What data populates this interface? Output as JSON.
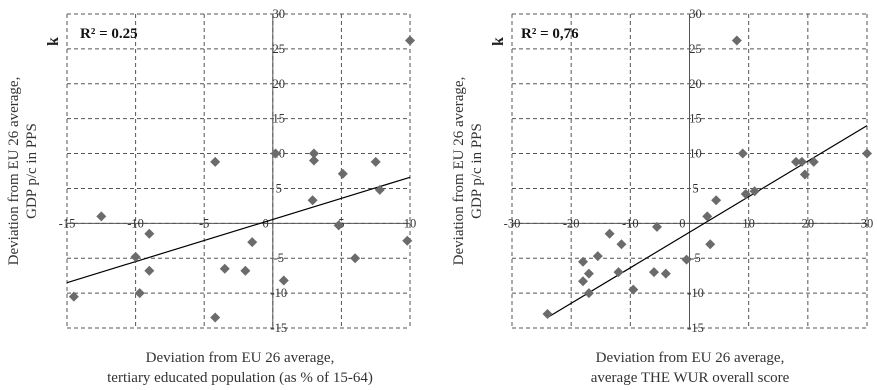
{
  "chart_data": [
    {
      "type": "scatter",
      "title": "",
      "annotation": "R² = 0.25",
      "corner_label": "k",
      "xlabel": [
        "Deviation from EU 26 average,",
        "tertiary educated population (as % of 15-64)"
      ],
      "ylabel": [
        "Deviation from EU 26 average,",
        "GDP p/c  in PPS"
      ],
      "xlim": [
        -15,
        10
      ],
      "ylim": [
        -15,
        30
      ],
      "xticks": [
        -15,
        -10,
        -5,
        0,
        5,
        10
      ],
      "yticks": [
        -15,
        -10,
        -5,
        0,
        5,
        10,
        15,
        20,
        25,
        30
      ],
      "grid": true,
      "marker_color": "#6b6b6b",
      "line_color": "#000000",
      "trendline": {
        "x": [
          -15,
          10
        ],
        "y": [
          -8.5,
          6.6
        ]
      },
      "points": [
        {
          "x": -12.5,
          "y": 1.0
        },
        {
          "x": -14.5,
          "y": -10.5
        },
        {
          "x": -10.0,
          "y": -4.8
        },
        {
          "x": -9.7,
          "y": -10.0
        },
        {
          "x": -9.0,
          "y": -1.5
        },
        {
          "x": -9.0,
          "y": -6.8
        },
        {
          "x": -4.2,
          "y": 8.8
        },
        {
          "x": -4.2,
          "y": -13.5
        },
        {
          "x": -3.5,
          "y": -6.5
        },
        {
          "x": -2.0,
          "y": -6.8
        },
        {
          "x": -1.5,
          "y": -2.7
        },
        {
          "x": 0.2,
          "y": 10.0
        },
        {
          "x": 0.8,
          "y": -8.2
        },
        {
          "x": 2.9,
          "y": 3.3
        },
        {
          "x": 3.0,
          "y": 10.0
        },
        {
          "x": 3.0,
          "y": 9.0
        },
        {
          "x": 4.8,
          "y": -0.3
        },
        {
          "x": 5.1,
          "y": 7.1
        },
        {
          "x": 6.0,
          "y": -5.0
        },
        {
          "x": 7.5,
          "y": 8.8
        },
        {
          "x": 7.8,
          "y": 4.8
        },
        {
          "x": 9.8,
          "y": -2.5
        },
        {
          "x": 10.0,
          "y": 26.2
        }
      ]
    },
    {
      "type": "scatter",
      "title": "",
      "annotation": "R² = 0,76",
      "corner_label": "k",
      "xlabel": [
        "Deviation from EU 26 average,",
        "average THE WUR overall score"
      ],
      "ylabel": [
        "Deviation from EU 26 average,",
        "GDP p/c  in PPS"
      ],
      "xlim": [
        -30,
        30
      ],
      "ylim": [
        -15,
        30
      ],
      "xticks": [
        -30,
        -20,
        -10,
        0,
        10,
        20,
        30
      ],
      "yticks": [
        -15,
        -10,
        -5,
        0,
        5,
        10,
        15,
        20,
        25,
        30
      ],
      "grid": true,
      "marker_color": "#6b6b6b",
      "line_color": "#000000",
      "trendline": {
        "x": [
          -24,
          30
        ],
        "y": [
          -13.5,
          14.0
        ]
      },
      "points": [
        {
          "x": -24.0,
          "y": -13.0
        },
        {
          "x": -18.0,
          "y": -5.5
        },
        {
          "x": -18.0,
          "y": -8.3
        },
        {
          "x": -17.0,
          "y": -7.2
        },
        {
          "x": -17.0,
          "y": -10.0
        },
        {
          "x": -15.5,
          "y": -4.7
        },
        {
          "x": -13.5,
          "y": -1.5
        },
        {
          "x": -12.0,
          "y": -7.0
        },
        {
          "x": -11.5,
          "y": -3.0
        },
        {
          "x": -9.5,
          "y": -9.5
        },
        {
          "x": -6.0,
          "y": -7.0
        },
        {
          "x": -5.5,
          "y": -0.5
        },
        {
          "x": -4.0,
          "y": -7.2
        },
        {
          "x": -0.5,
          "y": -5.2
        },
        {
          "x": 3.0,
          "y": 1.0
        },
        {
          "x": 3.5,
          "y": -3.0
        },
        {
          "x": 4.5,
          "y": 3.3
        },
        {
          "x": 8.0,
          "y": 26.2
        },
        {
          "x": 9.0,
          "y": 10.0
        },
        {
          "x": 9.5,
          "y": 4.2
        },
        {
          "x": 11.0,
          "y": 4.6
        },
        {
          "x": 18.0,
          "y": 8.8
        },
        {
          "x": 19.0,
          "y": 8.8
        },
        {
          "x": 19.5,
          "y": 7.0
        },
        {
          "x": 21.0,
          "y": 8.8
        },
        {
          "x": 30.0,
          "y": 10.0
        }
      ]
    }
  ]
}
